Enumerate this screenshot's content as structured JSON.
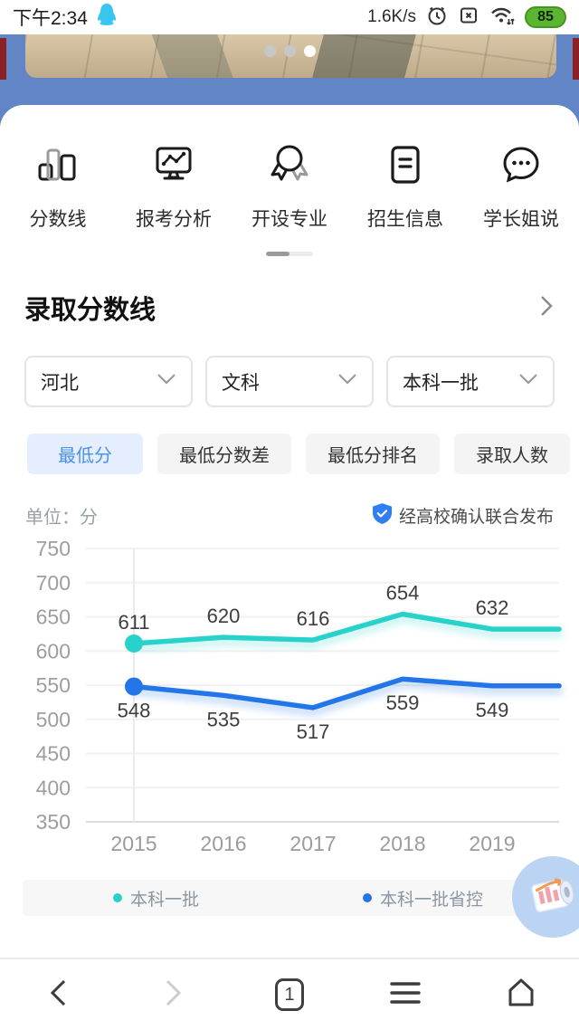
{
  "status_bar": {
    "time": "下午2:34",
    "net_speed": "1.6K/s",
    "battery_percent": "85"
  },
  "banner": {
    "dot_count": 3,
    "active_dot_index": 2
  },
  "quick_nav": {
    "items": [
      {
        "label": "分数线",
        "icon": "score-bars-icon"
      },
      {
        "label": "报考分析",
        "icon": "monitor-chart-icon"
      },
      {
        "label": "开设专业",
        "icon": "medal-icon"
      },
      {
        "label": "招生信息",
        "icon": "document-icon"
      },
      {
        "label": "学长姐说",
        "icon": "chat-bubble-icon"
      }
    ]
  },
  "score_section": {
    "title": "录取分数线",
    "filters": [
      {
        "value": "河北"
      },
      {
        "value": "文科"
      },
      {
        "value": "本科一批"
      }
    ],
    "tabs": [
      {
        "label": "最低分",
        "selected": true
      },
      {
        "label": "最低分数差",
        "selected": false
      },
      {
        "label": "最低分排名",
        "selected": false
      },
      {
        "label": "录取人数",
        "selected": false
      }
    ],
    "unit_label": "单位：分",
    "verified_label": "经高校确认联合发布"
  },
  "chart_data": {
    "type": "line",
    "x": [
      "2015",
      "2016",
      "2017",
      "2018",
      "2019"
    ],
    "series": [
      {
        "name": "本科一批",
        "color": "#28d2ca",
        "values": [
          611,
          620,
          616,
          654,
          632
        ]
      },
      {
        "name": "本科一批省控",
        "color": "#2476e8",
        "values": [
          548,
          535,
          517,
          559,
          549
        ]
      }
    ],
    "ylim": [
      350,
      750
    ],
    "yticks": [
      350,
      400,
      450,
      500,
      550,
      600,
      650,
      700,
      750
    ],
    "grid": true,
    "legend_position": "bottom",
    "extends_right": true
  },
  "legend": [
    {
      "label": "本科一批",
      "color": "#28d2ca"
    },
    {
      "label": "本科一批省控",
      "color": "#2476e8"
    }
  ],
  "bottom_nav": {
    "tab_count": "1"
  },
  "colors": {
    "accent_cyan": "#28d2ca",
    "accent_blue": "#2476e8",
    "selected_tab_bg": "#e4eefc",
    "selected_tab_text": "#4a90f0",
    "top_band_blue": "#6285c5",
    "edge_red": "#8c2124",
    "battery_green": "#5cb531"
  }
}
